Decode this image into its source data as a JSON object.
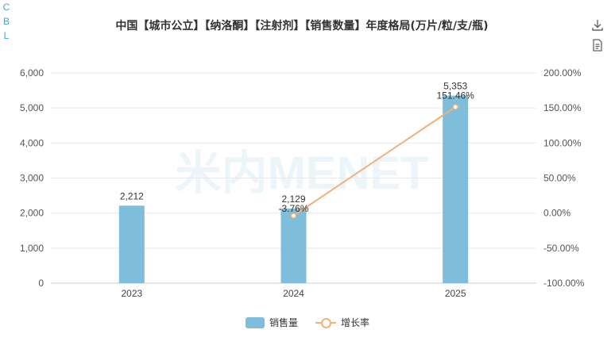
{
  "side_letters": [
    "C",
    "B",
    "L"
  ],
  "toolbar": {
    "download_icon": "download-icon",
    "data_view_icon": "document-icon"
  },
  "watermark": "米内MENET",
  "colors": {
    "bar": "#7ebedb",
    "line": "#f0b27a",
    "grid": "#e9e9e9",
    "axis_text": "#555555"
  },
  "chart_data": {
    "type": "bar+line",
    "title": "中国【城市公立】【纳洛酮】【注射剂】【销售数量】年度格局(万片/粒/支/瓶)",
    "categories": [
      "2023",
      "2024",
      "2025"
    ],
    "series": [
      {
        "name": "销售量",
        "type": "bar",
        "axis": "left",
        "values": [
          2212,
          2129,
          5353
        ],
        "labels": [
          "2,212",
          "2,129",
          "5,353"
        ]
      },
      {
        "name": "增长率",
        "type": "line",
        "axis": "right",
        "values": [
          null,
          -3.76,
          151.46
        ],
        "labels": [
          "",
          "-3.76%",
          "151.46%"
        ]
      }
    ],
    "left_axis": {
      "min": 0,
      "max": 6000,
      "ticks": [
        "0",
        "1,000",
        "2,000",
        "3,000",
        "4,000",
        "5,000",
        "6,000"
      ],
      "tick_values": [
        0,
        1000,
        2000,
        3000,
        4000,
        5000,
        6000
      ]
    },
    "right_axis": {
      "min": -100,
      "max": 200,
      "ticks": [
        "-100.00%",
        "-50.00%",
        "0.00%",
        "50.00%",
        "100.00%",
        "150.00%",
        "200.00%"
      ],
      "tick_values": [
        -100,
        -50,
        0,
        50,
        100,
        150,
        200
      ]
    },
    "legend": [
      "销售量",
      "增长率"
    ],
    "legend_position": "bottom-center",
    "grid": true
  }
}
